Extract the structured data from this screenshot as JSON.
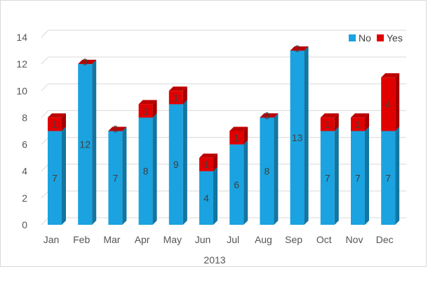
{
  "chart_data": {
    "type": "bar",
    "stacked": true,
    "style": "3d-column",
    "title": "",
    "xlabel": "2013",
    "ylabel": "",
    "categories": [
      "Jan",
      "Feb",
      "Mar",
      "Apr",
      "May",
      "Jun",
      "Jul",
      "Aug",
      "Sep",
      "Oct",
      "Nov",
      "Dec"
    ],
    "series": [
      {
        "name": "No",
        "values": [
          7,
          12,
          7,
          8,
          9,
          4,
          6,
          8,
          13,
          7,
          7,
          7
        ],
        "color": "#1aa3e0"
      },
      {
        "name": "Yes",
        "values": [
          1,
          0,
          0,
          1,
          1,
          1,
          1,
          0,
          0,
          1,
          1,
          4
        ],
        "color": "#e00000"
      }
    ],
    "ylim": [
      0,
      14
    ],
    "yticks": [
      0,
      2,
      4,
      6,
      8,
      10,
      12,
      14
    ],
    "grid": true,
    "legend_position": "top-right"
  }
}
